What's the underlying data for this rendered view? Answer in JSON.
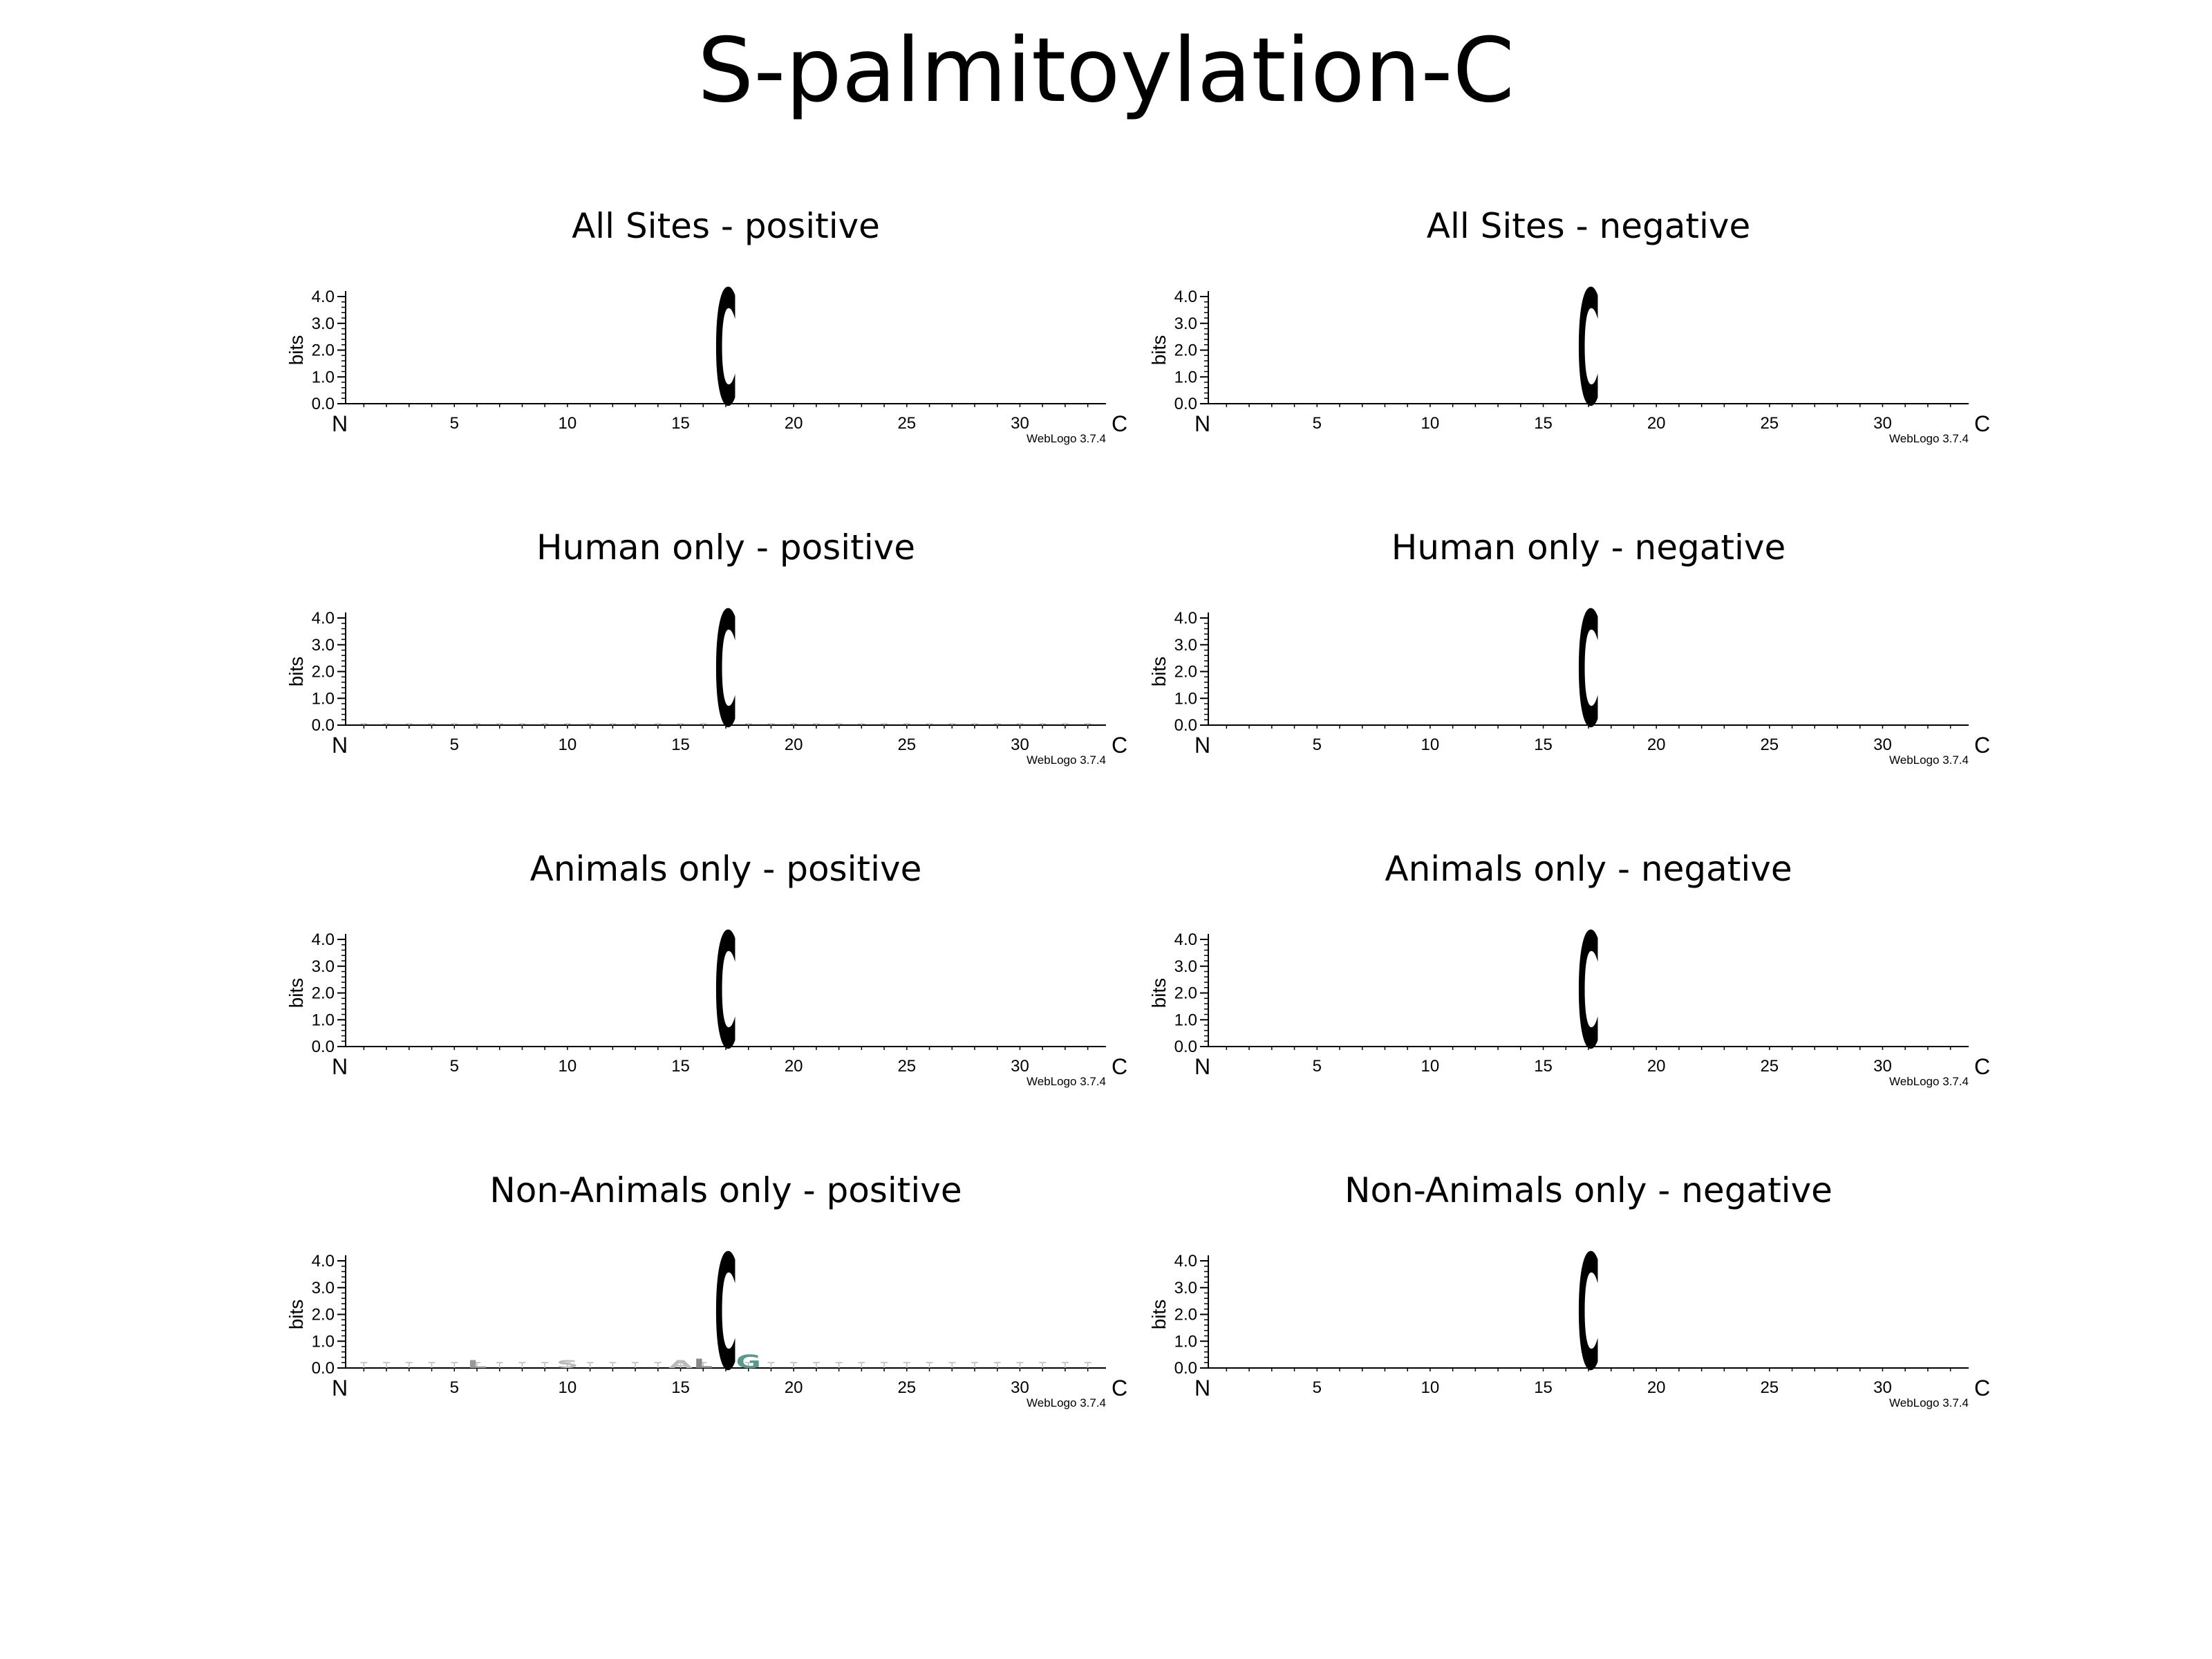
{
  "title": "S-palmitoylation-C",
  "chart_data": [
    {
      "type": "sequence-logo",
      "title": "All Sites - positive",
      "ylabel": "bits",
      "ylim": [
        0,
        4.0
      ],
      "yticks": [
        "0.0",
        "1.0",
        "2.0",
        "3.0",
        "4.0"
      ],
      "x_start_label": "N",
      "x_end_label": "C",
      "xticks": [
        "5",
        "10",
        "15",
        "20",
        "25",
        "30"
      ],
      "positions": 33,
      "letters": [
        {
          "position": 17,
          "letter": "C",
          "bits": 4.3,
          "color": "#000000"
        }
      ],
      "background_bits": 0.0,
      "footer": "WebLogo 3.7.4"
    },
    {
      "type": "sequence-logo",
      "title": "All Sites - negative",
      "ylabel": "bits",
      "ylim": [
        0,
        4.0
      ],
      "yticks": [
        "0.0",
        "1.0",
        "2.0",
        "3.0",
        "4.0"
      ],
      "x_start_label": "N",
      "x_end_label": "C",
      "xticks": [
        "5",
        "10",
        "15",
        "20",
        "25",
        "30"
      ],
      "positions": 33,
      "letters": [
        {
          "position": 17,
          "letter": "C",
          "bits": 4.3,
          "color": "#000000"
        }
      ],
      "background_bits": 0.0,
      "footer": "WebLogo 3.7.4"
    },
    {
      "type": "sequence-logo",
      "title": "Human only - positive",
      "ylabel": "bits",
      "ylim": [
        0,
        4.0
      ],
      "yticks": [
        "0.0",
        "1.0",
        "2.0",
        "3.0",
        "4.0"
      ],
      "x_start_label": "N",
      "x_end_label": "C",
      "xticks": [
        "5",
        "10",
        "15",
        "20",
        "25",
        "30"
      ],
      "positions": 33,
      "letters": [
        {
          "position": 17,
          "letter": "C",
          "bits": 4.3,
          "color": "#000000"
        }
      ],
      "background_bits": 0.05,
      "footer": "WebLogo 3.7.4"
    },
    {
      "type": "sequence-logo",
      "title": "Human only - negative",
      "ylabel": "bits",
      "ylim": [
        0,
        4.0
      ],
      "yticks": [
        "0.0",
        "1.0",
        "2.0",
        "3.0",
        "4.0"
      ],
      "x_start_label": "N",
      "x_end_label": "C",
      "xticks": [
        "5",
        "10",
        "15",
        "20",
        "25",
        "30"
      ],
      "positions": 33,
      "letters": [
        {
          "position": 17,
          "letter": "C",
          "bits": 4.3,
          "color": "#000000"
        }
      ],
      "background_bits": 0.0,
      "footer": "WebLogo 3.7.4"
    },
    {
      "type": "sequence-logo",
      "title": "Animals only - positive",
      "ylabel": "bits",
      "ylim": [
        0,
        4.0
      ],
      "yticks": [
        "0.0",
        "1.0",
        "2.0",
        "3.0",
        "4.0"
      ],
      "x_start_label": "N",
      "x_end_label": "C",
      "xticks": [
        "5",
        "10",
        "15",
        "20",
        "25",
        "30"
      ],
      "positions": 33,
      "letters": [
        {
          "position": 17,
          "letter": "C",
          "bits": 4.3,
          "color": "#000000"
        }
      ],
      "background_bits": 0.0,
      "footer": "WebLogo 3.7.4"
    },
    {
      "type": "sequence-logo",
      "title": "Animals only - negative",
      "ylabel": "bits",
      "ylim": [
        0,
        4.0
      ],
      "yticks": [
        "0.0",
        "1.0",
        "2.0",
        "3.0",
        "4.0"
      ],
      "x_start_label": "N",
      "x_end_label": "C",
      "xticks": [
        "5",
        "10",
        "15",
        "20",
        "25",
        "30"
      ],
      "positions": 33,
      "letters": [
        {
          "position": 17,
          "letter": "C",
          "bits": 4.3,
          "color": "#000000"
        }
      ],
      "background_bits": 0.0,
      "footer": "WebLogo 3.7.4"
    },
    {
      "type": "sequence-logo",
      "title": "Non-Animals only - positive",
      "ylabel": "bits",
      "ylim": [
        0,
        4.0
      ],
      "yticks": [
        "0.0",
        "1.0",
        "2.0",
        "3.0",
        "4.0"
      ],
      "x_start_label": "N",
      "x_end_label": "C",
      "xticks": [
        "5",
        "10",
        "15",
        "20",
        "25",
        "30"
      ],
      "positions": 33,
      "letters": [
        {
          "position": 17,
          "letter": "C",
          "bits": 4.3,
          "color": "#000000"
        },
        {
          "position": 6,
          "letter": "L",
          "bits": 0.3,
          "color": "#999999"
        },
        {
          "position": 10,
          "letter": "S",
          "bits": 0.3,
          "color": "#bbbbbb"
        },
        {
          "position": 15,
          "letter": "A",
          "bits": 0.3,
          "color": "#bbbbbb"
        },
        {
          "position": 16,
          "letter": "L",
          "bits": 0.35,
          "color": "#888888"
        },
        {
          "position": 18,
          "letter": "G",
          "bits": 0.5,
          "color": "#5a9a8a"
        }
      ],
      "background_bits": 0.2,
      "footer": "WebLogo 3.7.4"
    },
    {
      "type": "sequence-logo",
      "title": "Non-Animals only - negative",
      "ylabel": "bits",
      "ylim": [
        0,
        4.0
      ],
      "yticks": [
        "0.0",
        "1.0",
        "2.0",
        "3.0",
        "4.0"
      ],
      "x_start_label": "N",
      "x_end_label": "C",
      "xticks": [
        "5",
        "10",
        "15",
        "20",
        "25",
        "30"
      ],
      "positions": 33,
      "letters": [
        {
          "position": 17,
          "letter": "C",
          "bits": 4.3,
          "color": "#000000"
        }
      ],
      "background_bits": 0.0,
      "footer": "WebLogo 3.7.4"
    }
  ]
}
